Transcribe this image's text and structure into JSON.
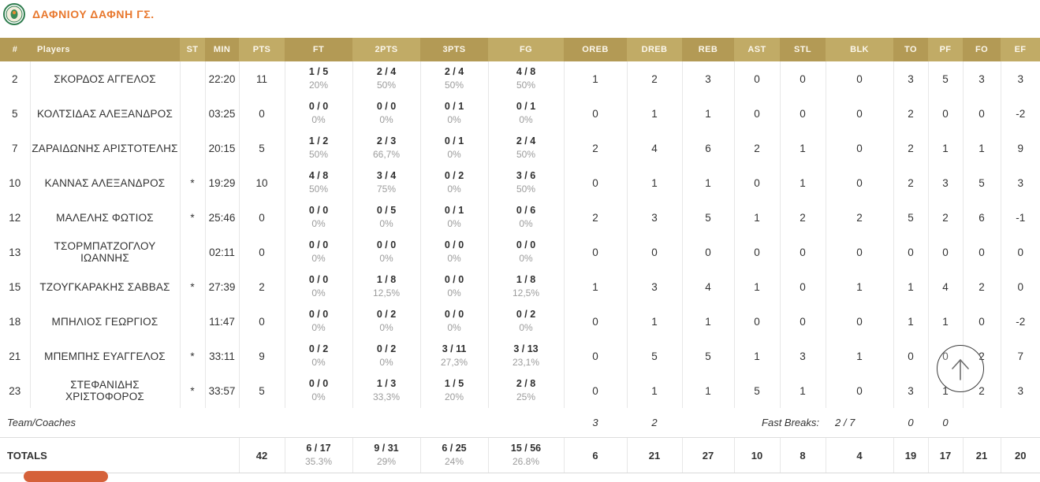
{
  "team": {
    "name": "ΔΑΦΝΙΟΥ ΔΑΦΝΗ ΓΣ."
  },
  "icons": {
    "logo": "team-crest-icon",
    "scroll": "arrow-up-icon"
  },
  "colors": {
    "title_orange": "#e8782e",
    "header_gold_dark": "#b39a55",
    "header_gold_light": "#c1ab66",
    "accent_button_orange": "#d5613a",
    "pct_gray": "#9c9c9c"
  },
  "table": {
    "headers": [
      "#",
      "Players",
      "ST",
      "MIN",
      "PTS",
      "FT",
      "2PTS",
      "3PTS",
      "FG",
      "OREB",
      "DREB",
      "REB",
      "AST",
      "STL",
      "BLK",
      "TO",
      "PF",
      "FO",
      "EF"
    ],
    "players": [
      {
        "num": "2",
        "name": "ΣΚΟΡΔΟΣ ΑΓΓΕΛΟΣ",
        "st": "",
        "min": "22:20",
        "pts": "11",
        "ft": "1 / 5",
        "ft_pct": "20%",
        "p2": "2 / 4",
        "p2_pct": "50%",
        "p3": "2 / 4",
        "p3_pct": "50%",
        "fg": "4 / 8",
        "fg_pct": "50%",
        "oreb": "1",
        "dreb": "2",
        "reb": "3",
        "ast": "0",
        "stl": "0",
        "blk": "0",
        "to": "3",
        "pf": "5",
        "fo": "3",
        "ef": "3"
      },
      {
        "num": "5",
        "name": "ΚΟΛΤΣΙΔΑΣ ΑΛΕΞΑΝΔΡΟΣ",
        "st": "",
        "min": "03:25",
        "pts": "0",
        "ft": "0 / 0",
        "ft_pct": "0%",
        "p2": "0 / 0",
        "p2_pct": "0%",
        "p3": "0 / 1",
        "p3_pct": "0%",
        "fg": "0 / 1",
        "fg_pct": "0%",
        "oreb": "0",
        "dreb": "1",
        "reb": "1",
        "ast": "0",
        "stl": "0",
        "blk": "0",
        "to": "2",
        "pf": "0",
        "fo": "0",
        "ef": "-2"
      },
      {
        "num": "7",
        "name": "ΖΑΡΑΙΔΩΝΗΣ ΑΡΙΣΤΟΤΕΛΗΣ",
        "st": "",
        "min": "20:15",
        "pts": "5",
        "ft": "1 / 2",
        "ft_pct": "50%",
        "p2": "2 / 3",
        "p2_pct": "66,7%",
        "p3": "0 / 1",
        "p3_pct": "0%",
        "fg": "2 / 4",
        "fg_pct": "50%",
        "oreb": "2",
        "dreb": "4",
        "reb": "6",
        "ast": "2",
        "stl": "1",
        "blk": "0",
        "to": "2",
        "pf": "1",
        "fo": "1",
        "ef": "9"
      },
      {
        "num": "10",
        "name": "ΚΑΝΝΑΣ ΑΛΕΞΑΝΔΡΟΣ",
        "st": "*",
        "min": "19:29",
        "pts": "10",
        "ft": "4 / 8",
        "ft_pct": "50%",
        "p2": "3 / 4",
        "p2_pct": "75%",
        "p3": "0 / 2",
        "p3_pct": "0%",
        "fg": "3 / 6",
        "fg_pct": "50%",
        "oreb": "0",
        "dreb": "1",
        "reb": "1",
        "ast": "0",
        "stl": "1",
        "blk": "0",
        "to": "2",
        "pf": "3",
        "fo": "5",
        "ef": "3"
      },
      {
        "num": "12",
        "name": "ΜΑΛΕΛΗΣ ΦΩΤΙΟΣ",
        "st": "*",
        "min": "25:46",
        "pts": "0",
        "ft": "0 / 0",
        "ft_pct": "0%",
        "p2": "0 / 5",
        "p2_pct": "0%",
        "p3": "0 / 1",
        "p3_pct": "0%",
        "fg": "0 / 6",
        "fg_pct": "0%",
        "oreb": "2",
        "dreb": "3",
        "reb": "5",
        "ast": "1",
        "stl": "2",
        "blk": "2",
        "to": "5",
        "pf": "2",
        "fo": "6",
        "ef": "-1"
      },
      {
        "num": "13",
        "name": "ΤΣΟΡΜΠΑΤΖΟΓΛΟΥ ΙΩΑΝΝΗΣ",
        "st": "",
        "min": "02:11",
        "pts": "0",
        "ft": "0 / 0",
        "ft_pct": "0%",
        "p2": "0 / 0",
        "p2_pct": "0%",
        "p3": "0 / 0",
        "p3_pct": "0%",
        "fg": "0 / 0",
        "fg_pct": "0%",
        "oreb": "0",
        "dreb": "0",
        "reb": "0",
        "ast": "0",
        "stl": "0",
        "blk": "0",
        "to": "0",
        "pf": "0",
        "fo": "0",
        "ef": "0"
      },
      {
        "num": "15",
        "name": "ΤΖΟΥΓΚΑΡΑΚΗΣ ΣΑΒΒΑΣ",
        "st": "*",
        "min": "27:39",
        "pts": "2",
        "ft": "0 / 0",
        "ft_pct": "0%",
        "p2": "1 / 8",
        "p2_pct": "12,5%",
        "p3": "0 / 0",
        "p3_pct": "0%",
        "fg": "1 / 8",
        "fg_pct": "12,5%",
        "oreb": "1",
        "dreb": "3",
        "reb": "4",
        "ast": "1",
        "stl": "0",
        "blk": "1",
        "to": "1",
        "pf": "4",
        "fo": "2",
        "ef": "0"
      },
      {
        "num": "18",
        "name": "ΜΠΗΛΙΟΣ ΓΕΩΡΓΙΟΣ",
        "st": "",
        "min": "11:47",
        "pts": "0",
        "ft": "0 / 0",
        "ft_pct": "0%",
        "p2": "0 / 2",
        "p2_pct": "0%",
        "p3": "0 / 0",
        "p3_pct": "0%",
        "fg": "0 / 2",
        "fg_pct": "0%",
        "oreb": "0",
        "dreb": "1",
        "reb": "1",
        "ast": "0",
        "stl": "0",
        "blk": "0",
        "to": "1",
        "pf": "1",
        "fo": "0",
        "ef": "-2"
      },
      {
        "num": "21",
        "name": "ΜΠΕΜΠΗΣ ΕΥΑΓΓΕΛΟΣ",
        "st": "*",
        "min": "33:11",
        "pts": "9",
        "ft": "0 / 2",
        "ft_pct": "0%",
        "p2": "0 / 2",
        "p2_pct": "0%",
        "p3": "3 / 11",
        "p3_pct": "27,3%",
        "fg": "3 / 13",
        "fg_pct": "23,1%",
        "oreb": "0",
        "dreb": "5",
        "reb": "5",
        "ast": "1",
        "stl": "3",
        "blk": "1",
        "to": "0",
        "pf": "0",
        "fo": "2",
        "ef": "7"
      },
      {
        "num": "23",
        "name": "ΣΤΕΦΑΝΙΔΗΣ ΧΡΙΣΤΟΦΟΡΟΣ",
        "st": "*",
        "min": "33:57",
        "pts": "5",
        "ft": "0 / 0",
        "ft_pct": "0%",
        "p2": "1 / 3",
        "p2_pct": "33,3%",
        "p3": "1 / 5",
        "p3_pct": "20%",
        "fg": "2 / 8",
        "fg_pct": "25%",
        "oreb": "0",
        "dreb": "1",
        "reb": "1",
        "ast": "5",
        "stl": "1",
        "blk": "0",
        "to": "3",
        "pf": "1",
        "fo": "2",
        "ef": "3"
      }
    ],
    "team_row": {
      "label": "Team/Coaches",
      "oreb": "3",
      "dreb": "2",
      "fast_breaks_label": "Fast Breaks:",
      "fast_breaks_value": "2 / 7",
      "to": "0",
      "pf": "0"
    },
    "totals": {
      "label": "TOTALS",
      "pts": "42",
      "ft": "6 / 17",
      "ft_pct": "35.3%",
      "p2": "9 / 31",
      "p2_pct": "29%",
      "p3": "6 / 25",
      "p3_pct": "24%",
      "fg": "15 / 56",
      "fg_pct": "26.8%",
      "oreb": "6",
      "dreb": "21",
      "reb": "27",
      "ast": "10",
      "stl": "8",
      "blk": "4",
      "to": "19",
      "pf": "17",
      "fo": "21",
      "ef": "20"
    }
  }
}
